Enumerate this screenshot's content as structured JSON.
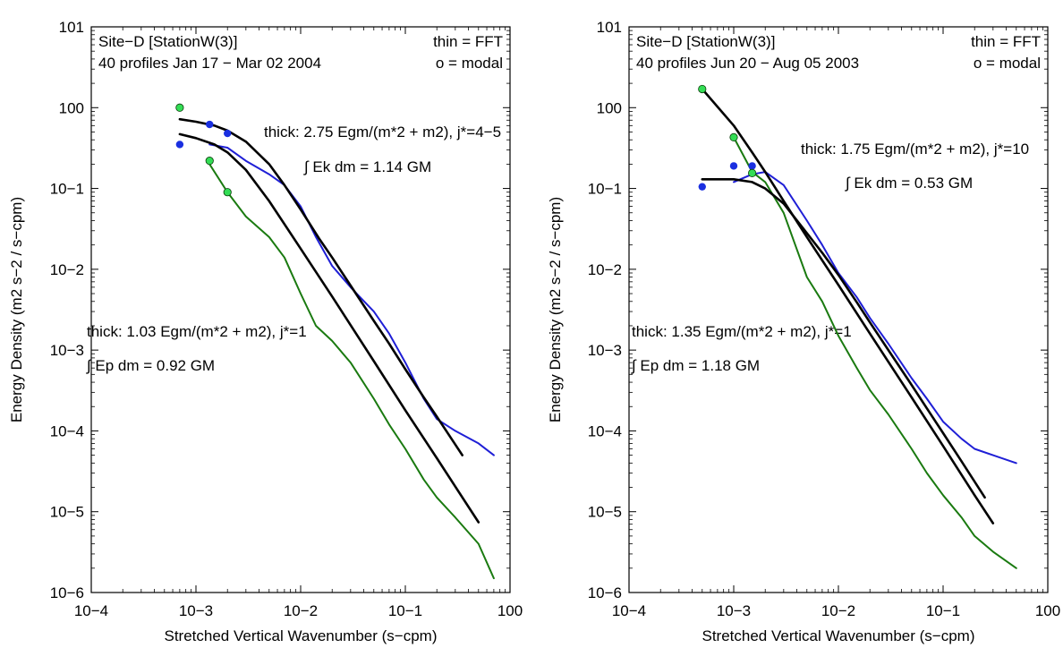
{
  "figure": {
    "xlabel": "Stretched Vertical Wavenumber (s−cpm)",
    "ylabel": "Energy Density (m2 s−2 / s−cpm)"
  },
  "colors": {
    "kinetic": "#1f1fd6",
    "potential": "#1a7a10",
    "model": "#000000",
    "modal_kinetic_fill": "#1a2fe0",
    "modal_potential_fill": "#33dd55"
  },
  "chart_data": [
    {
      "type": "line",
      "xscale": "log",
      "yscale": "log",
      "xlim": [
        0.0001,
        1
      ],
      "ylim": [
        1e-06,
        10
      ],
      "x_ticks": [
        "10−4",
        "10−3",
        "10−2",
        "10−1",
        "100"
      ],
      "y_ticks": [
        "10−6",
        "10−5",
        "10−4",
        "10−3",
        "10−2",
        "10−1",
        "100",
        "101"
      ],
      "title_lines": [
        "Site−D [StationW(3)]",
        "40 profiles Jan 17 − Mar 02 2004"
      ],
      "legend_lines": [
        "thin = FFT",
        "o = modal"
      ],
      "annotations": {
        "kinetic_model": "thick: 2.75 Egm/(m*2 + m2), j*=4−5",
        "kinetic_integral": "∫ Ek dm = 1.14 GM",
        "potential_model": "thick: 1.03 Egm/(m*2 + m2), j*=1",
        "potential_integral": "∫ Ep dm = 0.92 GM"
      },
      "series": [
        {
          "kind": "fft_kinetic",
          "x": [
            0.00135,
            0.002,
            0.003,
            0.005,
            0.007,
            0.01,
            0.014,
            0.02,
            0.03,
            0.05,
            0.07,
            0.1,
            0.15,
            0.2,
            0.3,
            0.5,
            0.7
          ],
          "y": [
            0.35,
            0.32,
            0.22,
            0.15,
            0.11,
            0.06,
            0.025,
            0.011,
            0.006,
            0.003,
            0.0016,
            0.0007,
            0.00025,
            0.00014,
            0.0001,
            7e-05,
            5e-05
          ]
        },
        {
          "kind": "fft_potential",
          "x": [
            0.00135,
            0.002,
            0.003,
            0.005,
            0.007,
            0.01,
            0.014,
            0.02,
            0.03,
            0.05,
            0.07,
            0.1,
            0.15,
            0.2,
            0.3,
            0.5,
            0.7
          ],
          "y": [
            0.2,
            0.09,
            0.045,
            0.025,
            0.014,
            0.005,
            0.002,
            0.0013,
            0.0007,
            0.00025,
            0.00012,
            6e-05,
            2.5e-05,
            1.5e-05,
            8.5e-06,
            4e-06,
            1.5e-06
          ]
        },
        {
          "kind": "model_kinetic",
          "x": [
            0.0007,
            0.001,
            0.0015,
            0.002,
            0.003,
            0.005,
            0.007,
            0.01,
            0.015,
            0.02,
            0.03,
            0.05,
            0.07,
            0.1,
            0.15,
            0.2,
            0.35
          ],
          "y": [
            0.72,
            0.67,
            0.6,
            0.52,
            0.38,
            0.2,
            0.11,
            0.055,
            0.024,
            0.014,
            0.0063,
            0.0023,
            0.0012,
            0.00058,
            0.00026,
            0.00015,
            5e-05
          ]
        },
        {
          "kind": "model_potential",
          "x": [
            0.0007,
            0.001,
            0.0015,
            0.002,
            0.003,
            0.005,
            0.01,
            0.02,
            0.05,
            0.1,
            0.2,
            0.5
          ],
          "y": [
            0.47,
            0.42,
            0.35,
            0.28,
            0.17,
            0.07,
            0.018,
            0.0046,
            0.00073,
            0.00018,
            4.6e-05,
            7.4e-06
          ]
        },
        {
          "kind": "modal_kinetic",
          "x": [
            0.0007,
            0.00135,
            0.002
          ],
          "y": [
            0.35,
            0.62,
            0.48
          ]
        },
        {
          "kind": "modal_potential",
          "x": [
            0.0007,
            0.00135,
            0.002
          ],
          "y": [
            1.0,
            0.22,
            0.09
          ]
        }
      ]
    },
    {
      "type": "line",
      "xscale": "log",
      "yscale": "log",
      "xlim": [
        0.0001,
        1
      ],
      "ylim": [
        1e-06,
        10
      ],
      "x_ticks": [
        "10−4",
        "10−3",
        "10−2",
        "10−1",
        "100"
      ],
      "y_ticks": [
        "10−6",
        "10−5",
        "10−4",
        "10−3",
        "10−2",
        "10−1",
        "100",
        "101"
      ],
      "title_lines": [
        "Site−D [StationW(3)]",
        "40 profiles Jun 20 − Aug 05 2003"
      ],
      "legend_lines": [
        "thin = FFT",
        "o = modal"
      ],
      "annotations": {
        "kinetic_model": "thick: 1.75 Egm/(m*2 + m2), j*=10",
        "kinetic_integral": "∫ Ek dm = 0.53 GM",
        "potential_model": "thick: 1.35 Egm/(m*2 + m2), j*=1",
        "potential_integral": "∫ Ep dm = 1.18 GM"
      },
      "series": [
        {
          "kind": "fft_kinetic",
          "x": [
            0.001,
            0.0015,
            0.002,
            0.003,
            0.005,
            0.007,
            0.01,
            0.015,
            0.02,
            0.03,
            0.05,
            0.07,
            0.1,
            0.15,
            0.2,
            0.3,
            0.5
          ],
          "y": [
            0.12,
            0.15,
            0.16,
            0.11,
            0.04,
            0.02,
            0.009,
            0.0045,
            0.0025,
            0.0012,
            0.00045,
            0.00025,
            0.00013,
            8e-05,
            6e-05,
            5e-05,
            4e-05
          ]
        },
        {
          "kind": "fft_potential",
          "x": [
            0.001,
            0.0015,
            0.002,
            0.003,
            0.005,
            0.007,
            0.01,
            0.015,
            0.02,
            0.03,
            0.05,
            0.07,
            0.1,
            0.15,
            0.2,
            0.3,
            0.5
          ],
          "y": [
            0.43,
            0.16,
            0.12,
            0.05,
            0.008,
            0.004,
            0.0015,
            0.0006,
            0.00032,
            0.00016,
            6e-05,
            3e-05,
            1.6e-05,
            8.5e-06,
            5e-06,
            3.2e-06,
            2e-06
          ]
        },
        {
          "kind": "model_kinetic",
          "x": [
            0.0005,
            0.001,
            0.0015,
            0.002,
            0.003,
            0.005,
            0.007,
            0.01,
            0.015,
            0.02,
            0.03,
            0.05,
            0.07,
            0.1,
            0.15,
            0.25
          ],
          "y": [
            0.13,
            0.13,
            0.12,
            0.1,
            0.065,
            0.028,
            0.016,
            0.0085,
            0.0039,
            0.0022,
            0.001,
            0.00037,
            0.00019,
            9.4e-05,
            4.2e-05,
            1.5e-05
          ]
        },
        {
          "kind": "model_potential",
          "x": [
            0.0005,
            0.001,
            0.0015,
            0.002,
            0.003,
            0.005,
            0.01,
            0.02,
            0.05,
            0.1,
            0.2,
            0.3
          ],
          "y": [
            1.7,
            0.6,
            0.28,
            0.16,
            0.07,
            0.025,
            0.0064,
            0.0016,
            0.00026,
            6.5e-05,
            1.6e-05,
            7.2e-06
          ]
        },
        {
          "kind": "modal_kinetic",
          "x": [
            0.0005,
            0.001,
            0.0015
          ],
          "y": [
            0.105,
            0.19,
            0.19
          ]
        },
        {
          "kind": "modal_potential",
          "x": [
            0.0005,
            0.001,
            0.0015
          ],
          "y": [
            1.7,
            0.43,
            0.155
          ]
        }
      ]
    }
  ]
}
